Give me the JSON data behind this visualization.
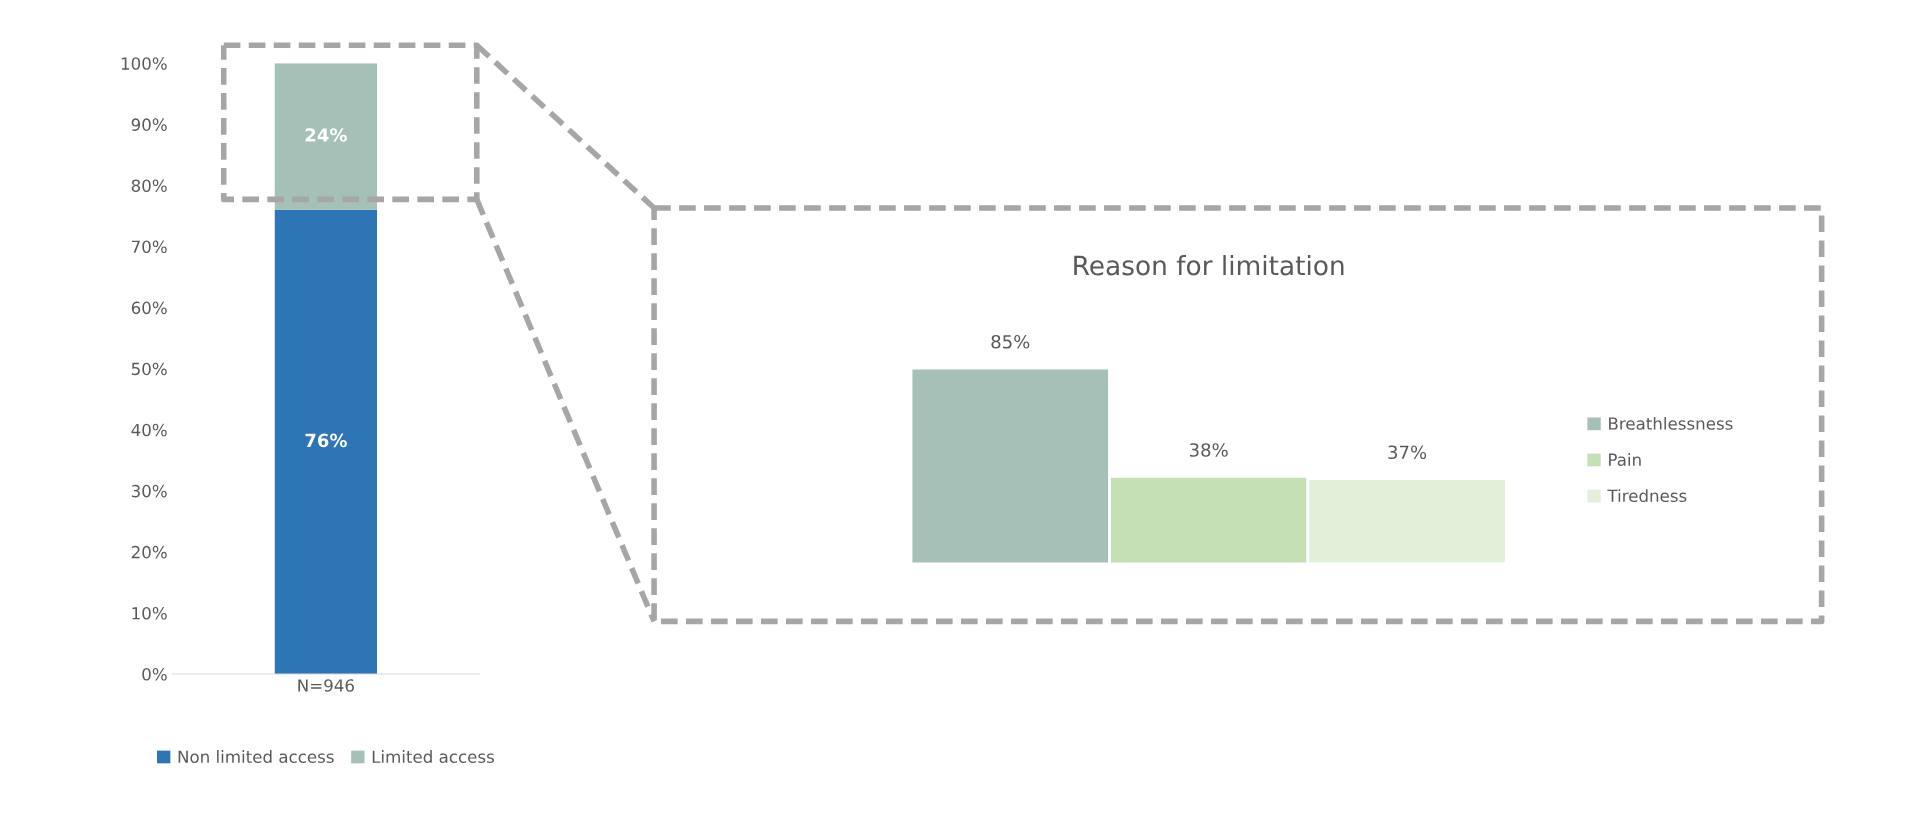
{
  "chart_data": [
    {
      "type": "bar",
      "stacked": true,
      "categories": [
        "N=946"
      ],
      "series": [
        {
          "name": "Non limited access",
          "color": "#2e75b6",
          "values": [
            76
          ],
          "value_labels": [
            "76%"
          ]
        },
        {
          "name": "Limited access",
          "color": "#a5c0b6",
          "values": [
            24
          ],
          "value_labels": [
            "24%"
          ]
        }
      ],
      "ylim": [
        0,
        100
      ],
      "yticks": [
        {
          "value": 0,
          "label": "0%"
        },
        {
          "value": 10,
          "label": "10%"
        },
        {
          "value": 20,
          "label": "20%"
        },
        {
          "value": 30,
          "label": "30%"
        },
        {
          "value": 40,
          "label": "40%"
        },
        {
          "value": 50,
          "label": "50%"
        },
        {
          "value": 60,
          "label": "60%"
        },
        {
          "value": 70,
          "label": "70%"
        },
        {
          "value": 80,
          "label": "80%"
        },
        {
          "value": 90,
          "label": "90%"
        },
        {
          "value": 100,
          "label": "100%"
        }
      ],
      "grid": false,
      "legend": "bottom"
    },
    {
      "type": "bar",
      "title": "Reason for limitation",
      "categories": [
        null
      ],
      "series": [
        {
          "name": "Breathlessness",
          "color": "#a5c0b6",
          "values": [
            85
          ],
          "value_labels": [
            "85%"
          ]
        },
        {
          "name": "Pain",
          "color": "#c5e0b4",
          "values": [
            38
          ],
          "value_labels": [
            "38%"
          ]
        },
        {
          "name": "Tiredness",
          "color": "#e2f0d9",
          "values": [
            37
          ],
          "value_labels": [
            "37%"
          ]
        }
      ],
      "tick_labels": false,
      "legend": "right"
    }
  ]
}
